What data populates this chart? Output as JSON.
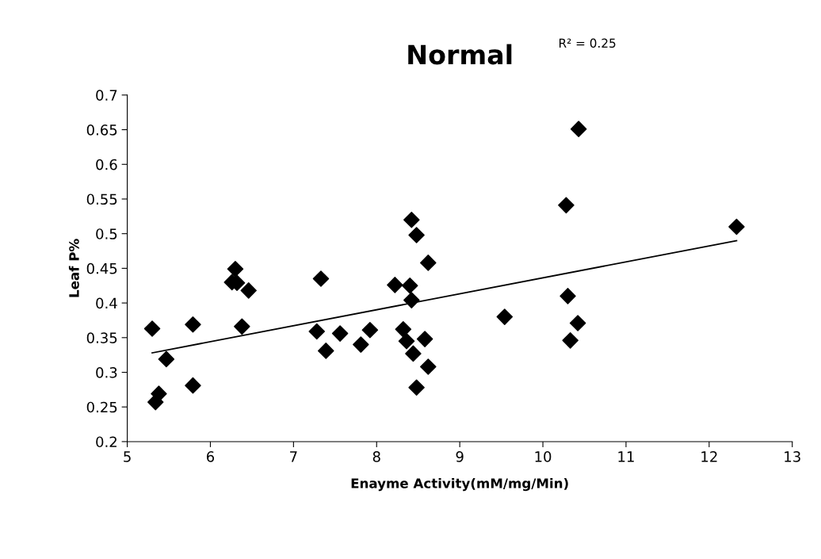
{
  "chart_data": {
    "type": "scatter",
    "title": "Normal",
    "xlabel": "Enayme Activity(mM/mg/Min)",
    "ylabel": "Leaf P%",
    "annotations": [
      "R² = 0.25"
    ],
    "xlim": [
      5,
      13
    ],
    "xticks": [
      5,
      6,
      7,
      8,
      9,
      10,
      11,
      12,
      13
    ],
    "ylim": [
      0.2,
      0.7
    ],
    "yticks": [
      0.2,
      0.25,
      0.3,
      0.35,
      0.4,
      0.45,
      0.5,
      0.55,
      0.6,
      0.65,
      0.7
    ],
    "grid": false,
    "legend": false,
    "marker": "diamond",
    "series": [
      {
        "color": "#000000",
        "x": [
          5.3,
          5.47,
          5.38,
          5.34,
          5.79,
          5.79,
          6.3,
          6.26,
          6.32,
          6.46,
          6.38,
          7.33,
          7.28,
          7.39,
          7.56,
          7.81,
          7.92,
          8.22,
          8.4,
          8.42,
          8.42,
          8.48,
          8.62,
          8.32,
          8.36,
          8.58,
          8.44,
          8.62,
          8.48,
          9.54,
          10.28,
          10.3,
          10.42,
          10.33,
          10.43,
          12.33
        ],
        "values": [
          0.363,
          0.319,
          0.269,
          0.257,
          0.369,
          0.281,
          0.449,
          0.43,
          0.429,
          0.418,
          0.366,
          0.435,
          0.359,
          0.331,
          0.356,
          0.34,
          0.361,
          0.426,
          0.425,
          0.404,
          0.52,
          0.498,
          0.458,
          0.362,
          0.345,
          0.348,
          0.327,
          0.308,
          0.278,
          0.38,
          0.541,
          0.41,
          0.371,
          0.346,
          0.651,
          0.51
        ]
      },
      {
        "type": "line",
        "color": "#000000",
        "marker": "none",
        "line_style": "solid",
        "x": [
          5.3,
          12.33
        ],
        "values": [
          0.328,
          0.49
        ]
      }
    ]
  }
}
